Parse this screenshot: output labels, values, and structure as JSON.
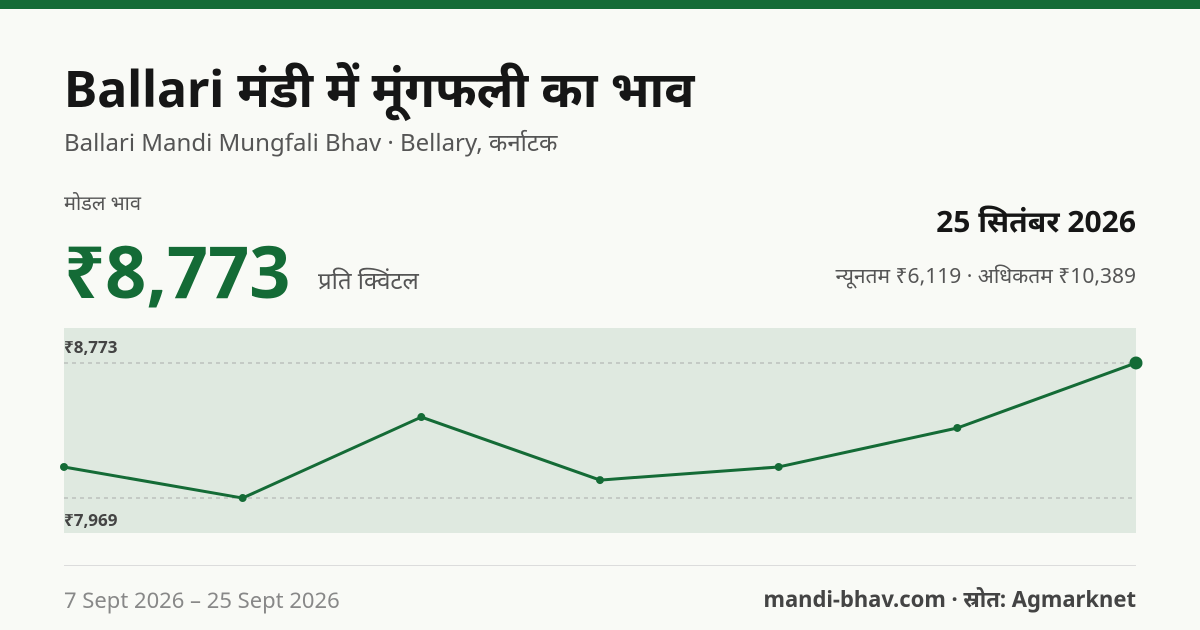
{
  "header": {
    "title": "Ballari मंडी में मूंगफली का भाव",
    "subtitle": "Ballari Mandi Mungfali Bhav · Bellary, कर्नाटक"
  },
  "summary": {
    "label": "मोडल भाव",
    "price": "₹8,773",
    "unit": "प्रति क्विंटल",
    "date": "25 सितंबर 2026",
    "min_max": "न्यूनतम ₹6,119 · अधिकतम ₹10,389"
  },
  "chart_data": {
    "type": "line",
    "series": [
      {
        "color": "#146b36",
        "values": [
          8154,
          7969,
          8451,
          8076,
          8154,
          8386,
          8773
        ]
      }
    ],
    "ylim": [
      7761,
      8981
    ],
    "yticks": [
      {
        "value": 7969,
        "label": "₹7,969"
      },
      {
        "value": 8773,
        "label": "₹8,773"
      }
    ],
    "grid": true
  },
  "footer": {
    "date_range": "7 Sept 2026 – 25 Sept 2026",
    "source": "mandi-bhav.com · स्रोत: Agmarknet"
  }
}
